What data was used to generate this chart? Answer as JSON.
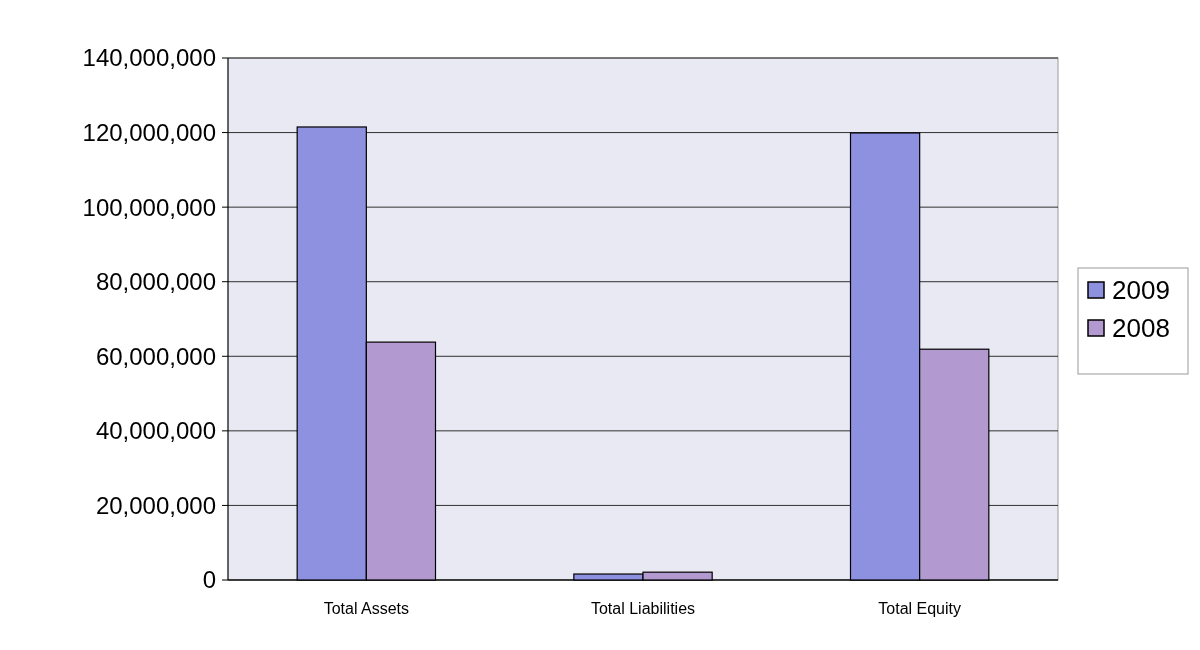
{
  "chart_data": {
    "type": "bar",
    "categories": [
      "Total Assets",
      "Total Liabilities",
      "Total Equity"
    ],
    "series": [
      {
        "name": "2009",
        "color": "#8e90e0",
        "values": [
          121500000,
          1600000,
          119900000
        ]
      },
      {
        "name": "2008",
        "color": "#b29ad0",
        "values": [
          63800000,
          2100000,
          61900000
        ]
      }
    ],
    "ylim": [
      0,
      140000000
    ],
    "yticks": [
      {
        "value": 0,
        "label": "0"
      },
      {
        "value": 20000000,
        "label": "20,000,000"
      },
      {
        "value": 40000000,
        "label": "40,000,000"
      },
      {
        "value": 60000000,
        "label": "60,000,000"
      },
      {
        "value": 80000000,
        "label": "80,000,000"
      },
      {
        "value": 100000000,
        "label": "100,000,000"
      },
      {
        "value": 120000000,
        "label": "120,000,000"
      },
      {
        "value": 140000000,
        "label": "140,000,000"
      }
    ],
    "grid": "y",
    "legend": "right"
  }
}
